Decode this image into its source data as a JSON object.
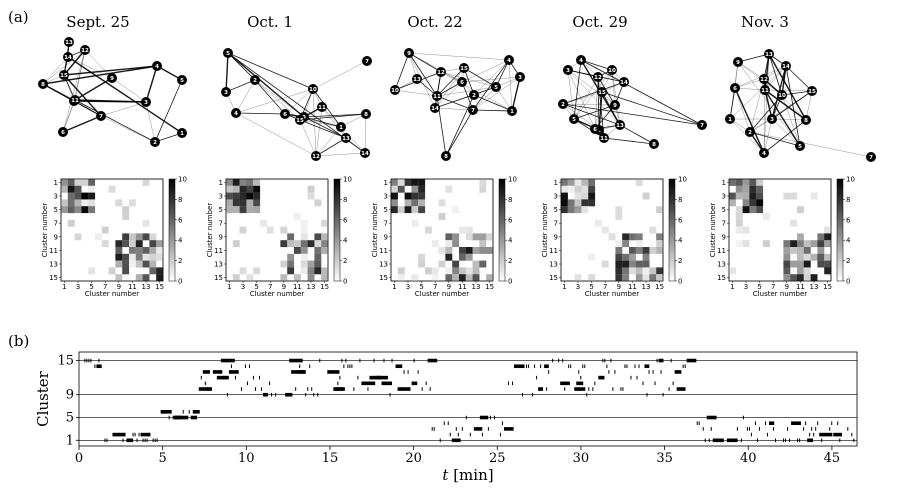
{
  "panel_a_label": "(a)",
  "panel_b_label": "(b)",
  "chart_data": [
    {
      "type": "network",
      "panels": [
        {
          "title": "Sept. 25",
          "nodes": [
            "1",
            "2",
            "3",
            "4",
            "5",
            "6",
            "7",
            "8",
            "9",
            "10",
            "11",
            "12",
            "13",
            "14",
            "15"
          ]
        },
        {
          "title": "Oct. 1",
          "nodes": [
            "1",
            "2",
            "3",
            "4",
            "5",
            "6",
            "7",
            "8",
            "9",
            "10",
            "11",
            "12",
            "13",
            "14",
            "15"
          ]
        },
        {
          "title": "Oct. 22",
          "nodes": [
            "1",
            "2",
            "3",
            "4",
            "5",
            "6",
            "7",
            "8",
            "9",
            "10",
            "11",
            "12",
            "13",
            "14",
            "15"
          ]
        },
        {
          "title": "Oct. 29",
          "nodes": [
            "1",
            "2",
            "3",
            "4",
            "5",
            "6",
            "7",
            "8",
            "9",
            "10",
            "11",
            "12",
            "13",
            "14",
            "15"
          ]
        },
        {
          "title": "Nov. 3",
          "nodes": [
            "1",
            "2",
            "3",
            "4",
            "5",
            "6",
            "7",
            "8",
            "9",
            "10",
            "11",
            "12",
            "13",
            "14",
            "15"
          ]
        }
      ]
    },
    {
      "type": "heatmap",
      "xlabel": "Cluster number",
      "ylabel": "Cluster number",
      "xticks": [
        "1",
        "3",
        "5",
        "7",
        "9",
        "11",
        "13",
        "15"
      ],
      "yticks": [
        "1",
        "3",
        "5",
        "7",
        "9",
        "11",
        "13",
        "15"
      ],
      "colorbar_ticks": [
        "0",
        "2",
        "4",
        "6",
        "8",
        "10"
      ],
      "colorbar_range": [
        0,
        10
      ],
      "count": 5
    },
    {
      "type": "scatter",
      "xlabel_italic": "t",
      "xlabel_rest": " [min]",
      "ylabel": "Cluster",
      "xticks": [
        "0",
        "5",
        "10",
        "15",
        "20",
        "25",
        "30",
        "35",
        "40",
        "45"
      ],
      "xlim": [
        0,
        46.5
      ],
      "yticks": [
        "1",
        "5",
        "9",
        "15"
      ],
      "ylim": [
        0,
        16.5
      ]
    }
  ]
}
